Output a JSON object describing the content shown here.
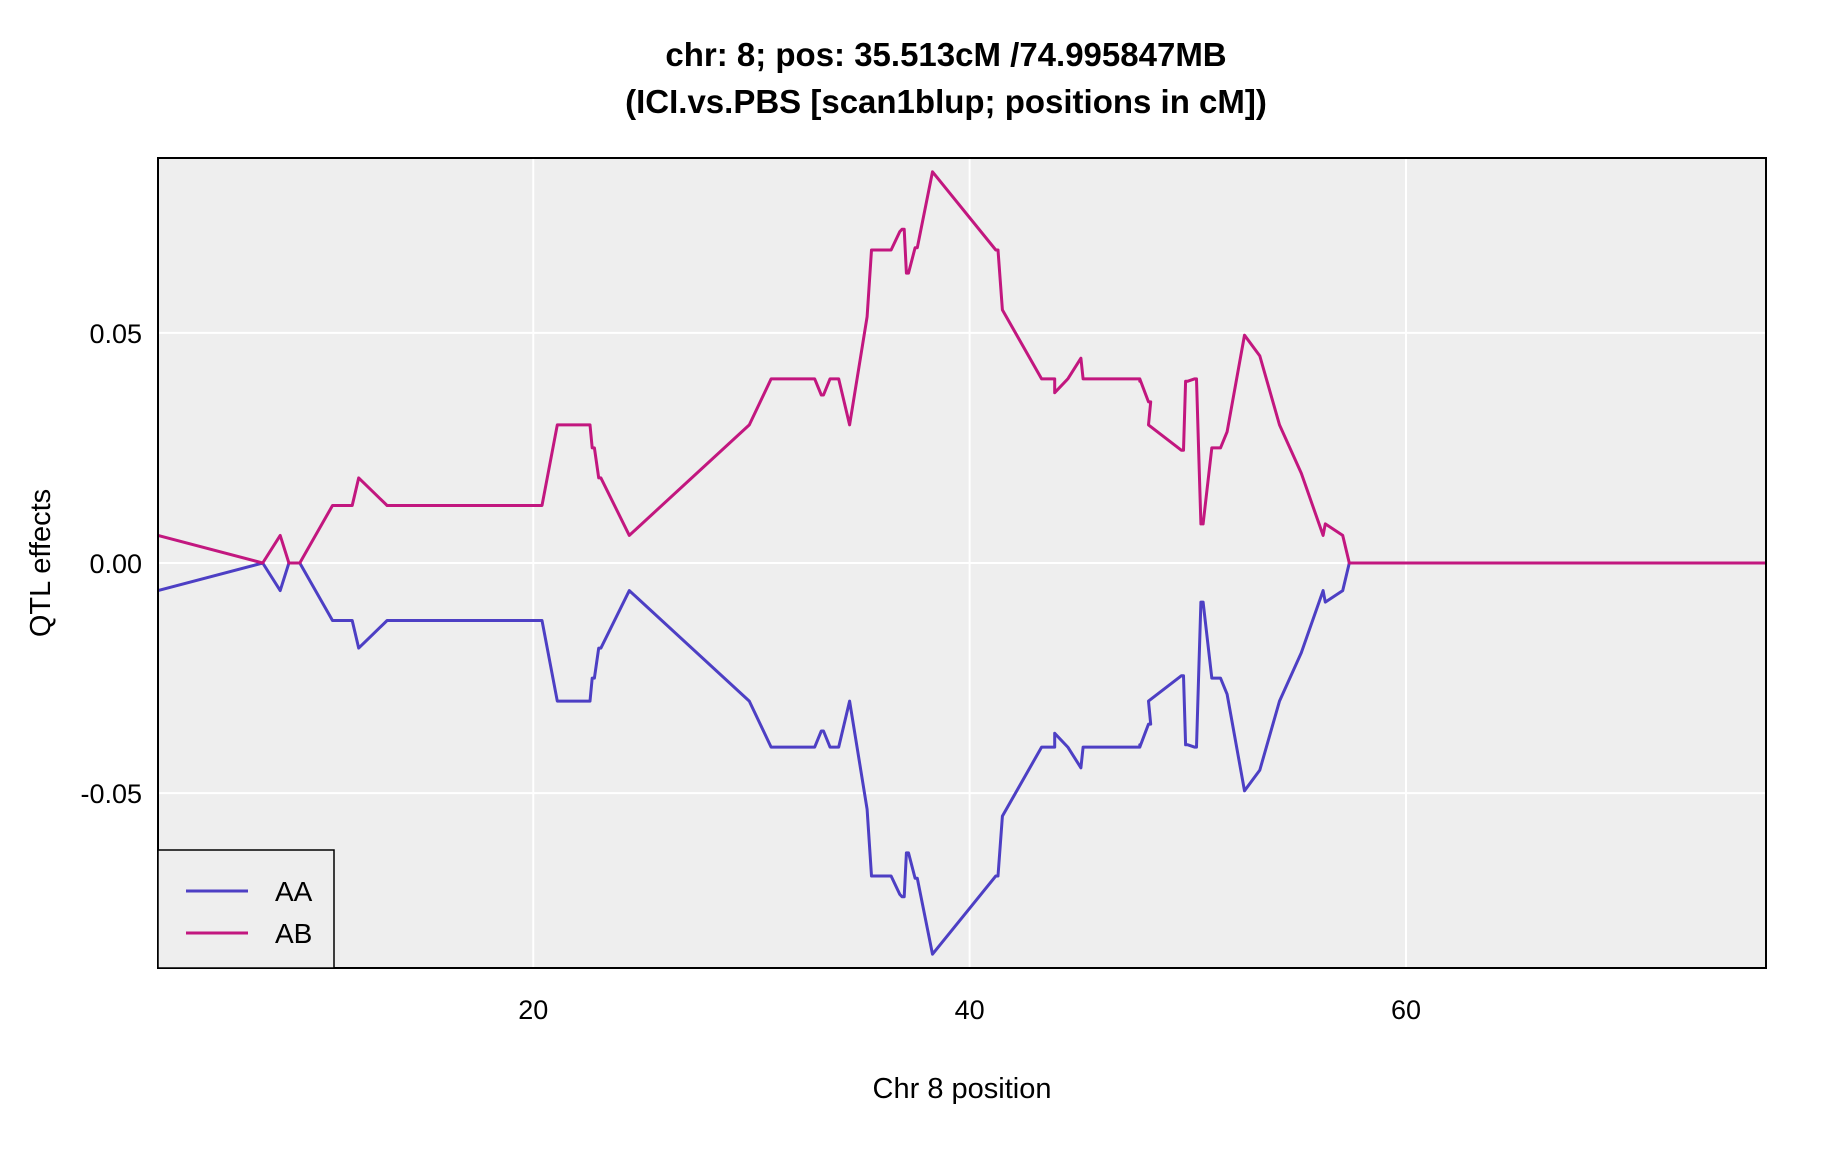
{
  "chart_data": {
    "type": "line",
    "title": "chr: 8; pos: 35.513cM /74.995847MB",
    "subtitle": "(ICI.vs.PBS [scan1blup; positions in cM])",
    "xlabel": "Chr 8 position",
    "ylabel": "QTL effects",
    "xlim": [
      2.8,
      76.5
    ],
    "ylim": [
      -0.088,
      0.088
    ],
    "xticks": [
      20,
      40,
      60
    ],
    "xtick_labels": [
      "20",
      "40",
      "60"
    ],
    "yticks": [
      -0.05,
      0.0,
      0.05
    ],
    "ytick_labels": [
      "-0.05",
      "0.00",
      "0.05"
    ],
    "grid": true,
    "legend_position": "bottom-left",
    "background_color": "#eeeeee",
    "series": [
      {
        "name": "AA",
        "color": "#4d3fc4",
        "x": [
          2.8,
          7.6,
          8.4,
          8.8,
          9.3,
          10.8,
          11.7,
          12.0,
          13.3,
          15.0,
          15.4,
          16.5,
          16.7,
          17.0,
          17.9,
          18.2,
          19.2,
          20.1,
          20.2,
          20.4,
          21.1,
          22.6,
          22.7,
          22.8,
          23.0,
          23.1,
          24.4,
          29.9,
          30.9,
          31.4,
          32.9,
          33.2,
          33.3,
          33.6,
          34.0,
          34.5,
          35.3,
          35.5,
          36.4,
          36.8,
          36.9,
          37.0,
          37.1,
          37.2,
          37.5,
          37.6,
          38.3,
          41.2,
          41.3,
          41.5,
          43.3,
          43.9,
          43.9,
          44.5,
          45.1,
          45.2,
          46.2,
          46.3,
          47.8,
          47.8,
          47.8,
          48.2,
          48.3,
          48.2,
          49.7,
          49.8,
          49.9,
          50.0,
          50.3,
          50.4,
          50.5,
          50.6,
          50.7,
          51.1,
          51.5,
          51.8,
          52.6,
          53.3,
          54.2,
          55.2,
          56.2,
          56.3,
          57.1,
          57.4,
          76.5
        ],
        "y": [
          -0.006,
          0.0,
          -0.006,
          0.0,
          0.0,
          -0.0125,
          -0.0125,
          -0.0185,
          -0.0125,
          -0.0125,
          -0.0125,
          -0.0125,
          -0.0125,
          -0.0125,
          -0.0125,
          -0.0125,
          -0.0125,
          -0.0125,
          -0.0125,
          -0.0125,
          -0.03,
          -0.03,
          -0.025,
          -0.025,
          -0.0185,
          -0.0185,
          -0.006,
          -0.03,
          -0.04,
          -0.04,
          -0.04,
          -0.0365,
          -0.0365,
          -0.04,
          -0.04,
          -0.03,
          -0.0535,
          -0.068,
          -0.068,
          -0.072,
          -0.0725,
          -0.0725,
          -0.063,
          -0.063,
          -0.0685,
          -0.0685,
          -0.085,
          -0.068,
          -0.068,
          -0.055,
          -0.04,
          -0.04,
          -0.037,
          -0.04,
          -0.0445,
          -0.04,
          -0.04,
          -0.04,
          -0.04,
          -0.0395,
          -0.04,
          -0.035,
          -0.035,
          -0.03,
          -0.0245,
          -0.0245,
          -0.0395,
          -0.0395,
          -0.04,
          -0.04,
          -0.024,
          -0.0085,
          -0.0085,
          -0.025,
          -0.025,
          -0.0285,
          -0.0495,
          -0.045,
          -0.03,
          -0.0195,
          -0.006,
          -0.0085,
          -0.006,
          0.0,
          0.0
        ],
        "note": ""
      },
      {
        "name": "AB",
        "color": "#c2177f",
        "x": [],
        "y": []
      }
    ]
  }
}
